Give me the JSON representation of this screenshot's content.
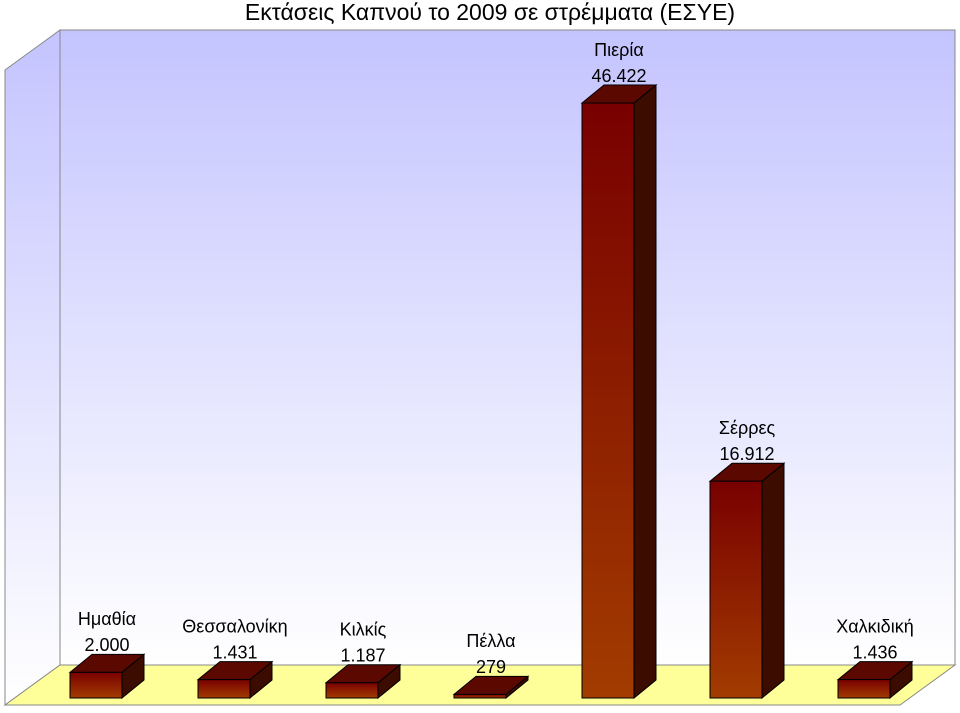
{
  "chart_data": {
    "type": "bar3d",
    "title": "Εκτάσεις Καπνού το 2009 σε στρέμματα (ΕΣΥΕ)",
    "categories": [
      "Ημαθία",
      "Θεσσαλονίκη",
      "Κιλκίς",
      "Πέλλα",
      "Πιερία",
      "Σέρρες",
      "Χαλκιδική"
    ],
    "values": [
      2000,
      1431,
      1187,
      279,
      46422,
      16912,
      1436
    ],
    "value_labels": [
      "2.000",
      "1.431",
      "1.187",
      "279",
      "46.422",
      "16.912",
      "1.436"
    ]
  }
}
